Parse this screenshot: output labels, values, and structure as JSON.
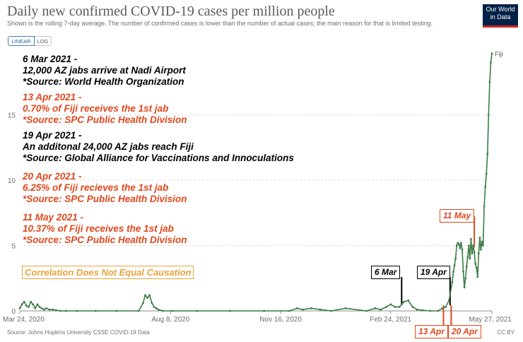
{
  "header": {
    "title": "Daily new confirmed COVID-19 cases per million people",
    "subtitle": "Shown is the rolling 7-day average. The number of confirmed cases is lower than the number of actual cases; the main reason for that is limited testing.",
    "logo_line1": "Our World",
    "logo_line2": "in Data"
  },
  "toggles": {
    "linear": "LINEAR",
    "log": "LOG",
    "active": "linear"
  },
  "footer": {
    "source": "Source: Johns Hopkins University CSSE COVID-19 Data",
    "license": "CC BY"
  },
  "annotations": {
    "notes": [
      {
        "color": "black",
        "lines": [
          "6 Mar 2021 -",
          "12,000 AZ jabs arrive at Nadi Airport",
          "*Source: World Health Organization"
        ]
      },
      {
        "color": "red",
        "lines": [
          "13 Apr 2021 -",
          "0.70% of Fiji receives the 1st jab",
          "*Source: SPC Public Health Division"
        ]
      },
      {
        "color": "black",
        "lines": [
          "19 Apr 2021 -",
          "An additonal 24,000 AZ jabs reach Fiji",
          "*Source: Global Alliance for Vaccinations and Innoculations"
        ]
      },
      {
        "color": "red",
        "lines": [
          "20 Apr 2021 -",
          "6.25% of Fiji recieves the 1st jab",
          "*Source: SPC Public Health Division"
        ]
      },
      {
        "color": "red",
        "lines": [
          "11 May 2021 -",
          "10.37% of Fiji receives the 1st jab",
          "*Source: SPC Public Health Division"
        ]
      }
    ],
    "correlation": "Correlation Does Not Equal Causation",
    "events": [
      {
        "label": "6 Mar",
        "date": "2021-03-06",
        "color": "black"
      },
      {
        "label": "19 Apr",
        "date": "2021-04-19",
        "color": "black"
      },
      {
        "label": "11 May",
        "date": "2021-05-11",
        "color": "red"
      },
      {
        "label": "13 Apr",
        "date": "2021-04-13",
        "color": "red"
      },
      {
        "label": "20 Apr",
        "date": "2021-04-20",
        "color": "red"
      }
    ]
  },
  "colors": {
    "line": "#3a7d44",
    "red_annotation": "#e0481d",
    "orange": "#e8a33b",
    "brand": "#002147"
  },
  "chart_data": {
    "type": "line",
    "title": "Daily new confirmed COVID-19 cases per million people",
    "xlabel": "",
    "ylabel": "",
    "x_ticks": [
      "Mar 24, 2020",
      "Aug 8, 2020",
      "Nov 16, 2020",
      "Feb 24, 2021",
      "May 27, 2021"
    ],
    "y_ticks": [
      0,
      5,
      10,
      15
    ],
    "xlim": [
      "2020-03-24",
      "2021-05-27"
    ],
    "ylim": [
      0,
      20
    ],
    "grid": "horizontal",
    "series": [
      {
        "name": "Fiji",
        "x": [
          "2020-03-24",
          "2020-03-26",
          "2020-03-28",
          "2020-03-30",
          "2020-04-01",
          "2020-04-03",
          "2020-04-05",
          "2020-04-07",
          "2020-04-09",
          "2020-04-11",
          "2020-04-13",
          "2020-04-15",
          "2020-04-17",
          "2020-04-20",
          "2020-04-23",
          "2020-04-26",
          "2020-04-30",
          "2020-05-05",
          "2020-05-15",
          "2020-06-01",
          "2020-06-20",
          "2020-07-10",
          "2020-07-14",
          "2020-07-16",
          "2020-07-18",
          "2020-07-20",
          "2020-07-22",
          "2020-07-24",
          "2020-07-26",
          "2020-07-28",
          "2020-08-01",
          "2020-08-10",
          "2020-09-01",
          "2020-10-01",
          "2020-11-01",
          "2020-11-24",
          "2020-12-01",
          "2020-12-06",
          "2020-12-14",
          "2020-12-22",
          "2021-01-01",
          "2021-01-14",
          "2021-02-02",
          "2021-02-10",
          "2021-02-15",
          "2021-02-20",
          "2021-02-24",
          "2021-02-28",
          "2021-03-04",
          "2021-03-08",
          "2021-03-12",
          "2021-03-16",
          "2021-03-20",
          "2021-03-25",
          "2021-04-01",
          "2021-04-08",
          "2021-04-12",
          "2021-04-15",
          "2021-04-18",
          "2021-04-21",
          "2021-04-22",
          "2021-04-23",
          "2021-04-24",
          "2021-04-25",
          "2021-04-26",
          "2021-04-27",
          "2021-04-28",
          "2021-04-29",
          "2021-04-30",
          "2021-05-01",
          "2021-05-02",
          "2021-05-03",
          "2021-05-04",
          "2021-05-05",
          "2021-05-06",
          "2021-05-07",
          "2021-05-08",
          "2021-05-09",
          "2021-05-10",
          "2021-05-11",
          "2021-05-12",
          "2021-05-13",
          "2021-05-14",
          "2021-05-15",
          "2021-05-16",
          "2021-05-17",
          "2021-05-18",
          "2021-05-19",
          "2021-05-20",
          "2021-05-21",
          "2021-05-22",
          "2021-05-23",
          "2021-05-24",
          "2021-05-25",
          "2021-05-26",
          "2021-05-27"
        ],
        "y": [
          0.2,
          0.5,
          0.7,
          0.4,
          0.3,
          0.7,
          0.5,
          0.2,
          0.5,
          0.3,
          0.2,
          0.1,
          0.2,
          0.1,
          0.1,
          0.05,
          0,
          0,
          0,
          0,
          0,
          0,
          0.6,
          1.2,
          1.0,
          1.2,
          0.6,
          0.3,
          0.2,
          0.1,
          0,
          0,
          0,
          0,
          0,
          0,
          0.2,
          0.1,
          0.2,
          0.1,
          0,
          0.2,
          0,
          0.2,
          0.1,
          0.3,
          0.5,
          0.3,
          0.3,
          0.7,
          0.8,
          0.3,
          0.1,
          0.05,
          0,
          0,
          0.2,
          0.3,
          0.8,
          2.2,
          3.0,
          3.5,
          4.0,
          5.0,
          5.2,
          5.1,
          4.8,
          5.2,
          4.7,
          3.0,
          1.8,
          2.5,
          3.4,
          4.1,
          5.0,
          4.0,
          5.5,
          4.4,
          5.0,
          4.5,
          3.6,
          3.3,
          2.6,
          4.4,
          5.6,
          4.7,
          5.3,
          5.0,
          8.0,
          9.5,
          10.5,
          12.0,
          15.0,
          17.5,
          19.0,
          19.7
        ]
      }
    ]
  }
}
